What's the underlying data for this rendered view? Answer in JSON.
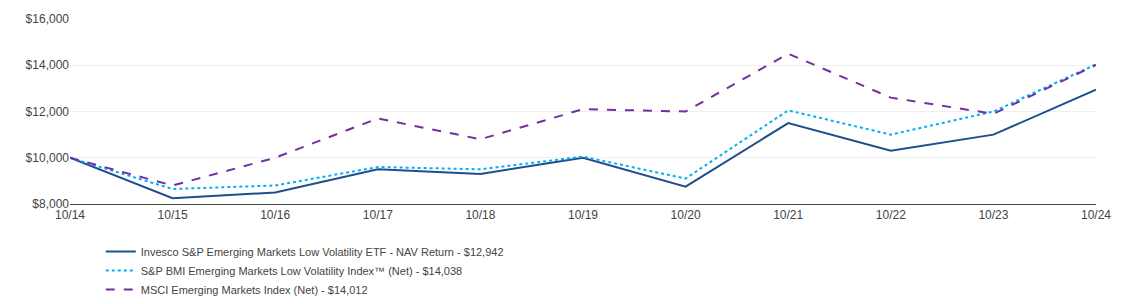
{
  "chart_data": {
    "type": "line",
    "categories": [
      "10/14",
      "10/15",
      "10/16",
      "10/17",
      "10/18",
      "10/19",
      "10/20",
      "10/21",
      "10/22",
      "10/23",
      "10/24"
    ],
    "series": [
      {
        "name": "Invesco S&P Emerging Markets Low Volatility ETF - NAV Return - $12,942",
        "color": "#1f4e8c",
        "line_style": "solid",
        "values": [
          10000,
          8250,
          8500,
          9500,
          9300,
          10000,
          8750,
          11500,
          10300,
          11000,
          12942
        ]
      },
      {
        "name": "S&P BMI Emerging Markets Low Volatility Index™ (Net) - $14,038",
        "color": "#00b0f0",
        "line_style": "dotted",
        "values": [
          10000,
          8650,
          8800,
          9600,
          9500,
          10050,
          9100,
          12050,
          11000,
          12000,
          14038
        ]
      },
      {
        "name": "MSCI Emerging Markets Index (Net) - $14,012",
        "color": "#7030a0",
        "line_style": "dashed",
        "values": [
          10000,
          8800,
          10000,
          11700,
          10800,
          12100,
          12000,
          14500,
          12600,
          11900,
          14012
        ]
      }
    ],
    "ylim": [
      8000,
      16000
    ],
    "yticks": [
      {
        "value": 8000,
        "label": "$8,000"
      },
      {
        "value": 10000,
        "label": "$10,000"
      },
      {
        "value": 12000,
        "label": "$12,000"
      },
      {
        "value": 14000,
        "label": "$14,000"
      },
      {
        "value": 16000,
        "label": "$16,000"
      }
    ],
    "grid": true,
    "legend": "bottom"
  }
}
